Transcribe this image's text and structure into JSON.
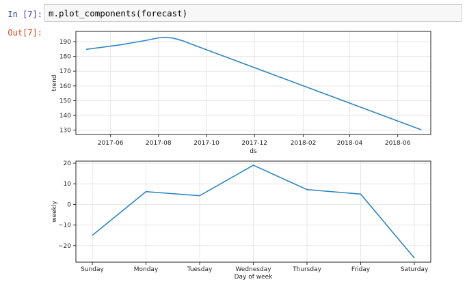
{
  "cell": {
    "in_prompt": "In [7]:",
    "out_prompt": "Out[7]:",
    "code": "m.plot_components(forecast)"
  },
  "chart_data": [
    {
      "type": "line",
      "title": "",
      "xlabel": "ds",
      "ylabel": "trend",
      "x": [
        "2017-05-01",
        "2017-06-15",
        "2017-07-15",
        "2017-08-01",
        "2017-08-10",
        "2017-08-20",
        "2017-09-01",
        "2017-09-10",
        "2018-07-01"
      ],
      "y": [
        184.8,
        188.0,
        190.8,
        192.6,
        193.0,
        192.4,
        190.6,
        188.7,
        130.2
      ],
      "xlim": [
        "2017-04-18",
        "2018-07-13"
      ],
      "ylim": [
        127,
        197
      ],
      "xticks": [
        "2017-06-01",
        "2017-08-01",
        "2017-10-01",
        "2017-12-01",
        "2018-02-01",
        "2018-04-01",
        "2018-06-01"
      ],
      "xtick_labels": [
        "2017-06",
        "2017-08",
        "2017-10",
        "2017-12",
        "2018-02",
        "2018-04",
        "2018-06"
      ],
      "yticks": [
        130,
        140,
        150,
        160,
        170,
        180,
        190
      ],
      "grid": true,
      "color": "#2e86c1"
    },
    {
      "type": "line",
      "title": "",
      "xlabel": "Day of week",
      "ylabel": "weekly",
      "categories": [
        "Sunday",
        "Monday",
        "Tuesday",
        "Wednesday",
        "Thursday",
        "Friday",
        "Saturday"
      ],
      "values": [
        -15.0,
        6.2,
        4.2,
        19.0,
        7.2,
        5.0,
        -26.0
      ],
      "ylim": [
        -28,
        21
      ],
      "yticks": [
        -20,
        -10,
        0,
        10,
        20
      ],
      "grid": true,
      "color": "#2e86c1"
    }
  ]
}
